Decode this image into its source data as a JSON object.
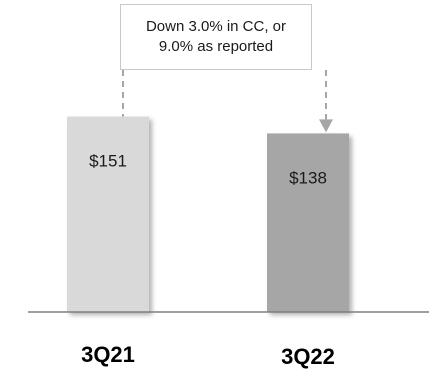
{
  "chart_data": {
    "type": "bar",
    "categories": [
      "3Q21",
      "3Q22"
    ],
    "values": [
      151,
      138
    ],
    "data_labels": [
      "$151",
      "$138"
    ],
    "title": "",
    "xlabel": "",
    "ylabel": "",
    "ylim": [
      0,
      170
    ],
    "grid": false,
    "bar_colors": [
      "#d9d9d9",
      "#a6a6a6"
    ],
    "annotation": {
      "line1": "Down 3.0% in CC, or",
      "line2": "9.0% as reported"
    }
  }
}
